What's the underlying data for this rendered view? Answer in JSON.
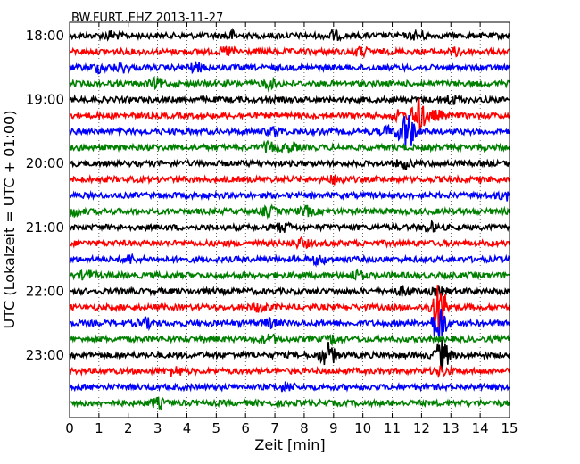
{
  "chart_data": {
    "type": "line",
    "title": "BW.FURT..EHZ 2013-11-27",
    "xlabel": "Zeit  [min]",
    "ylabel": "UTC (Lokalzeit = UTC + 01:00)",
    "xlim": [
      0,
      15
    ],
    "x_ticks": [
      "0",
      "1",
      "2",
      "3",
      "4",
      "5",
      "6",
      "7",
      "8",
      "9",
      "10",
      "11",
      "12",
      "13",
      "14",
      "15"
    ],
    "y_tick_labels": [
      "18:00",
      "19:00",
      "20:00",
      "21:00",
      "22:00",
      "23:00"
    ],
    "trace_interval_min": 15,
    "first_trace_start": "18:00",
    "trace_colors": [
      "#000000",
      "#ff0000",
      "#0000ff",
      "#008000"
    ],
    "grid": "vertical dotted lines at each minute",
    "series": [
      {
        "start": "18:00",
        "color": "#000000",
        "events_min": [
          1.4,
          5.5,
          9.0,
          11.9
        ]
      },
      {
        "start": "18:15",
        "color": "#ff0000",
        "events_min": [
          5.4,
          9.9,
          13.3
        ]
      },
      {
        "start": "18:30",
        "color": "#0000ff",
        "events_min": [
          1.0,
          1.8,
          4.3
        ]
      },
      {
        "start": "18:45",
        "color": "#008000",
        "events_min": [
          3.0,
          6.8
        ]
      },
      {
        "start": "19:00",
        "color": "#000000",
        "events_min": [
          13.0
        ]
      },
      {
        "start": "19:15",
        "color": "#ff0000",
        "events_min": [
          11.2,
          11.9,
          12.5
        ]
      },
      {
        "start": "19:30",
        "color": "#0000ff",
        "events_min": [
          7.0,
          10.9,
          11.5
        ]
      },
      {
        "start": "19:45",
        "color": "#008000",
        "events_min": [
          6.8,
          7.5
        ]
      },
      {
        "start": "20:00",
        "color": "#000000",
        "events_min": [
          11.4
        ]
      },
      {
        "start": "20:15",
        "color": "#ff0000",
        "events_min": [
          9.1
        ]
      },
      {
        "start": "20:30",
        "color": "#0000ff",
        "events_min": [
          14.9
        ]
      },
      {
        "start": "20:45",
        "color": "#008000",
        "events_min": [
          0.1,
          6.8,
          8.1
        ]
      },
      {
        "start": "21:00",
        "color": "#000000",
        "events_min": [
          7.3,
          12.3
        ]
      },
      {
        "start": "21:15",
        "color": "#ff0000",
        "events_min": [
          7.9
        ]
      },
      {
        "start": "21:30",
        "color": "#0000ff",
        "events_min": [
          2.0,
          8.5
        ]
      },
      {
        "start": "21:45",
        "color": "#008000",
        "events_min": [
          0.6,
          9.8
        ]
      },
      {
        "start": "22:00",
        "color": "#000000",
        "events_min": [
          11.4,
          12.6
        ]
      },
      {
        "start": "22:15",
        "color": "#ff0000",
        "events_min": [
          6.5,
          12.6
        ]
      },
      {
        "start": "22:30",
        "color": "#0000ff",
        "events_min": [
          2.6,
          6.8,
          12.6
        ]
      },
      {
        "start": "22:45",
        "color": "#008000",
        "events_min": [
          6.8,
          9.0
        ]
      },
      {
        "start": "23:00",
        "color": "#000000",
        "events_min": [
          8.8,
          12.7
        ]
      },
      {
        "start": "23:15",
        "color": "#ff0000",
        "events_min": [
          3.6,
          12.7
        ]
      },
      {
        "start": "23:30",
        "color": "#0000ff",
        "events_min": [
          7.4
        ]
      },
      {
        "start": "23:45",
        "color": "#008000",
        "events_min": [
          3.0
        ]
      }
    ]
  }
}
